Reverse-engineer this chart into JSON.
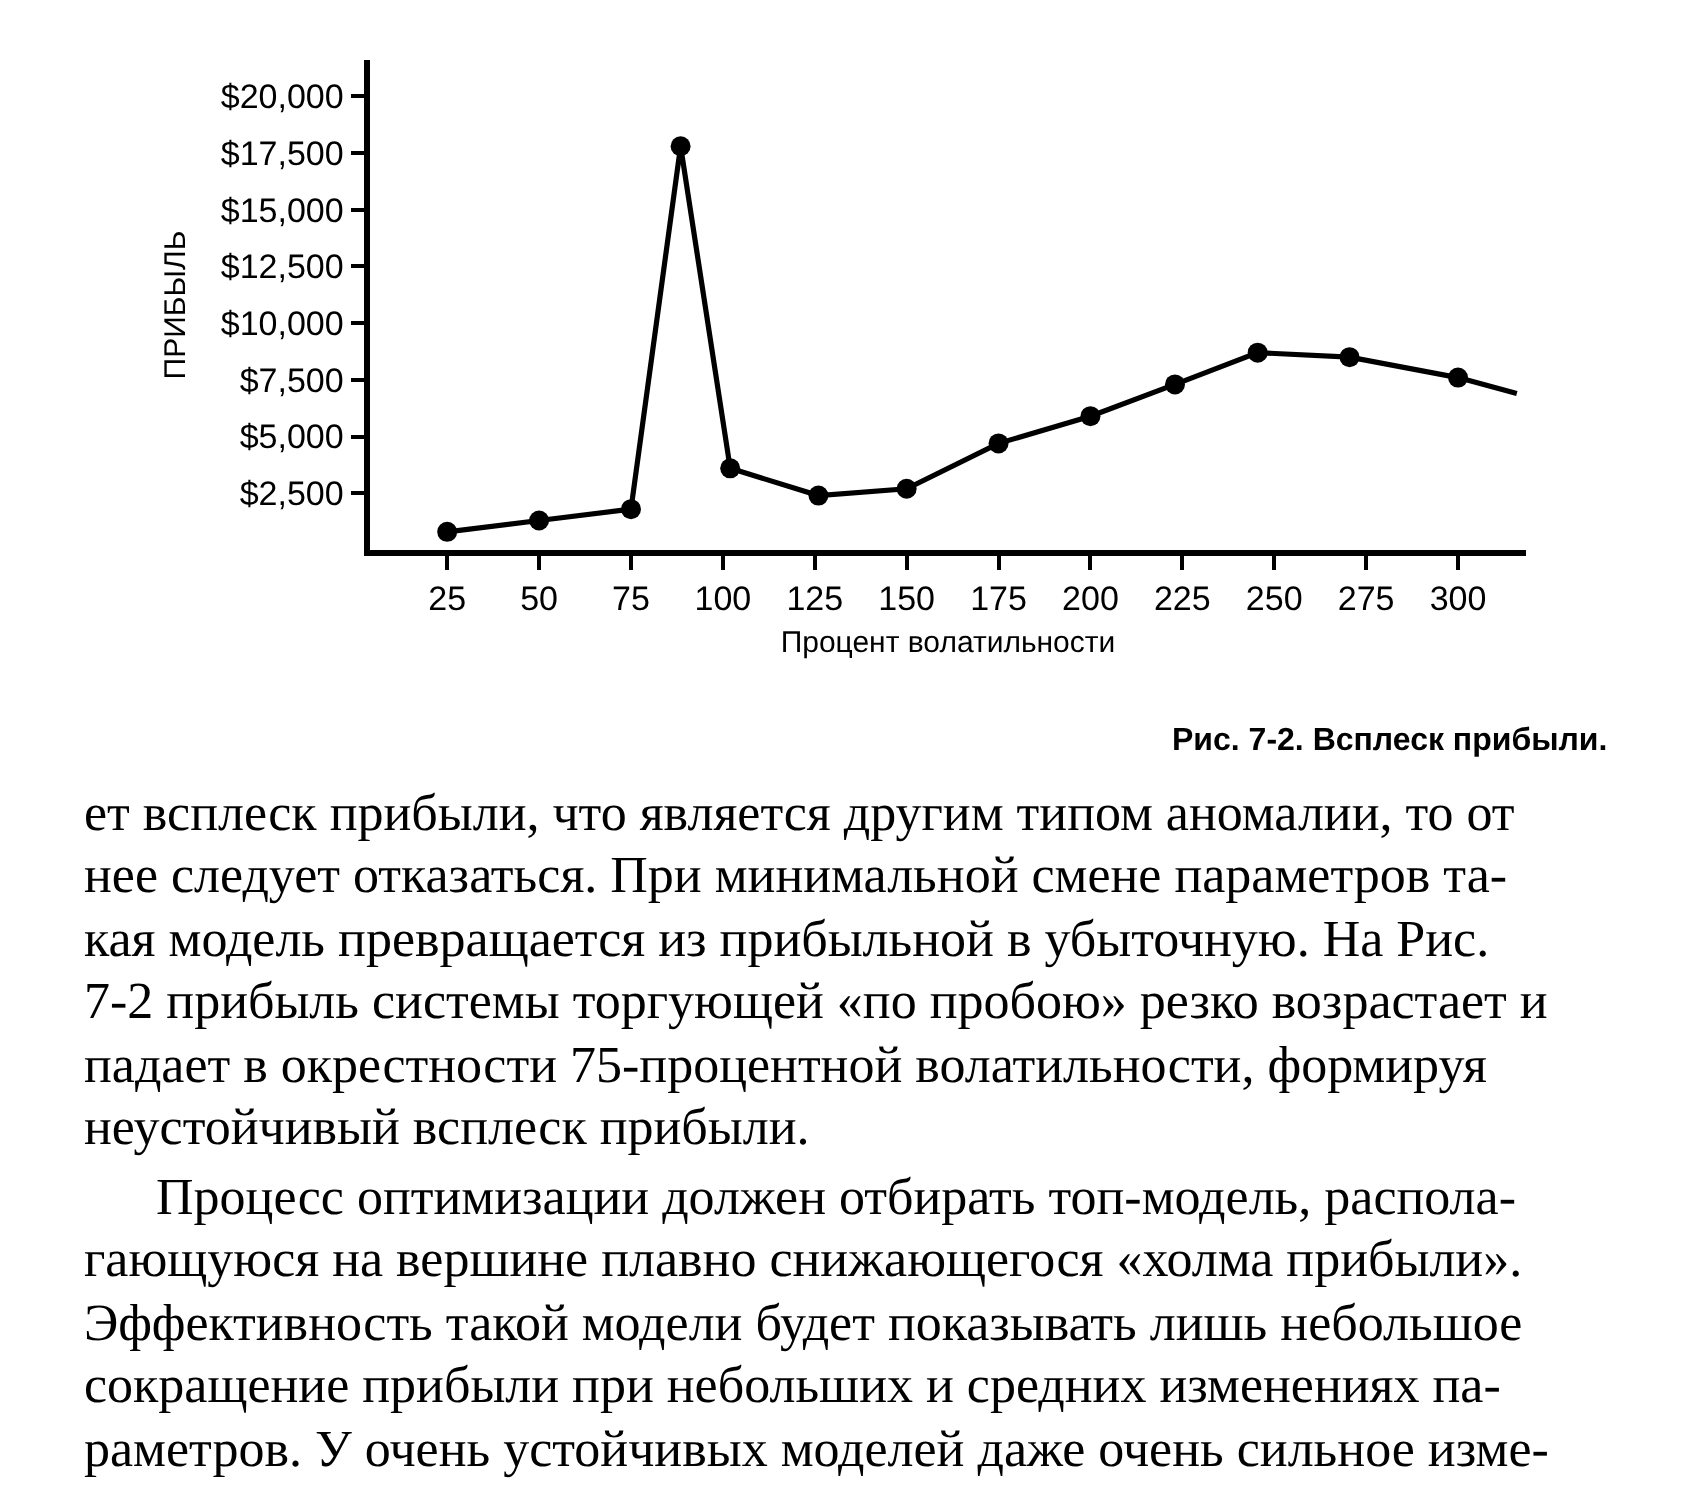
{
  "chart_data": {
    "type": "line",
    "xlabel": "Процент волатильности",
    "ylabel": "ПРИБЫЛЬ",
    "annotations": [
      "Рис. 7-2. Всплеск прибыли.",
      "ет всплеск прибыли, что является другим типом аномалии, то от\nнее следует отказаться. При минимальной смене параметров та-\nкая модель превращается из прибыльной в убыточную. На Рис.\n7-2 прибыль системы торгующей «по пробою» резко возрастает и\nпадает в окрестности 75-процентной волатильности, формируя\nнеустойчивый всплеск прибыли.",
      "Процесс оптимизации должен отбирать топ-модель, распола-\nгающуюся на вершине плавно снижающегося «холма прибыли».\nЭффективность такой модели будет показывать лишь небольшое\nсокращение прибыли при небольших и средних изменениях па-\nраметров. У очень устойчивых моделей даже очень сильное изме-"
    ],
    "series": [
      {
        "color": "#000000",
        "marker": "circle",
        "x": [
          25,
          50,
          75,
          88.5,
          102,
          126,
          150,
          175,
          200,
          223,
          245.5,
          270.5,
          300
        ],
        "values": [
          800,
          1300,
          1800,
          17800,
          3600,
          2400,
          2700,
          4700,
          5900,
          7300,
          8700,
          8500,
          7600
        ]
      },
      {
        "color": "#000000",
        "marker": "none",
        "x": [
          300,
          316
        ],
        "values": [
          7600,
          6900
        ]
      }
    ],
    "xlim": [
      4,
      318.5
    ],
    "ylim": [
      0,
      21600
    ],
    "xticks": [
      25,
      50,
      75,
      100,
      125,
      150,
      175,
      200,
      225,
      250,
      275,
      300
    ],
    "yticks": [
      {
        "value": 2500,
        "label": "$2,500"
      },
      {
        "value": 5000,
        "label": "$5,000"
      },
      {
        "value": 7500,
        "label": "$7,500"
      },
      {
        "value": 10000,
        "label": "$10,000"
      },
      {
        "value": 12500,
        "label": "$12,500"
      },
      {
        "value": 15000,
        "label": "$15,000"
      },
      {
        "value": 17500,
        "label": "$17,500"
      },
      {
        "value": 20000,
        "label": "$20,000"
      }
    ],
    "line_style": "solid"
  }
}
